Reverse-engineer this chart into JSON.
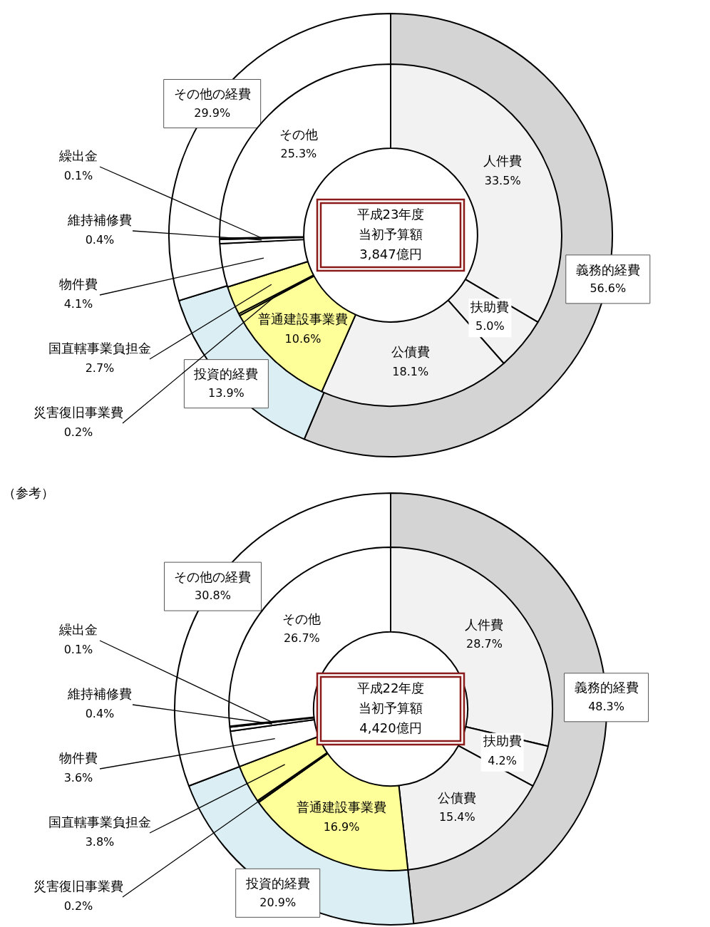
{
  "chart_data": [
    {
      "type": "donut",
      "categories": [
        "義務的経費",
        "投資的経費",
        "その他の経費"
      ],
      "values": [
        56.6,
        13.9,
        29.9
      ],
      "value_labels": [
        "56.6%",
        "13.9%",
        "29.9%"
      ],
      "colors": [
        "#d4d4d4",
        "#daeef3",
        "#ffffff"
      ],
      "legend": false
    },
    {
      "type": "donut",
      "categories": [
        "人件費",
        "扶助費",
        "公債費",
        "普通建設事業費",
        "災害復旧事業費",
        "国直轄事業負担金",
        "物件費",
        "維持補修費",
        "繰出金",
        "その他"
      ],
      "values": [
        33.5,
        5.0,
        18.1,
        10.6,
        0.2,
        2.7,
        4.1,
        0.4,
        0.1,
        25.3
      ],
      "value_labels": [
        "33.5%",
        "5.0%",
        "18.1%",
        "10.6%",
        "0.2%",
        "2.7%",
        "4.1%",
        "0.4%",
        "0.1%",
        "25.3%"
      ],
      "colors": [
        "#f2f2f2",
        "#f2f2f2",
        "#f2f2f2",
        "#ffff99",
        "#ffff99",
        "#ffff99",
        "#ffffff",
        "#ffffff",
        "#ffffff",
        "#ffffff"
      ],
      "legend": false,
      "annotations": [
        "平成23年度",
        "当初予算額",
        "3,847億円"
      ]
    },
    {
      "type": "donut",
      "categories": [
        "義務的経費",
        "投資的経費",
        "その他の経費"
      ],
      "values": [
        48.3,
        20.9,
        30.8
      ],
      "value_labels": [
        "48.3%",
        "20.9%",
        "30.8%"
      ],
      "colors": [
        "#d4d4d4",
        "#daeef3",
        "#ffffff"
      ],
      "legend": false,
      "annotations": [
        "（参考）"
      ]
    },
    {
      "type": "donut",
      "categories": [
        "人件費",
        "扶助費",
        "公債費",
        "普通建設事業費",
        "災害復旧事業費",
        "国直轄事業負担金",
        "物件費",
        "維持補修費",
        "繰出金",
        "その他"
      ],
      "values": [
        28.7,
        4.2,
        15.4,
        16.9,
        0.2,
        3.8,
        3.6,
        0.4,
        0.1,
        26.7
      ],
      "value_labels": [
        "28.7%",
        "4.2%",
        "15.4%",
        "16.9%",
        "0.2%",
        "3.8%",
        "3.6%",
        "0.4%",
        "0.1%",
        "26.7%"
      ],
      "colors": [
        "#f2f2f2",
        "#f2f2f2",
        "#f2f2f2",
        "#ffff99",
        "#ffff99",
        "#ffff99",
        "#ffffff",
        "#ffffff",
        "#ffffff",
        "#ffffff"
      ],
      "legend": false,
      "annotations": [
        "平成22年度",
        "当初予算額",
        "4,420億円"
      ]
    }
  ]
}
